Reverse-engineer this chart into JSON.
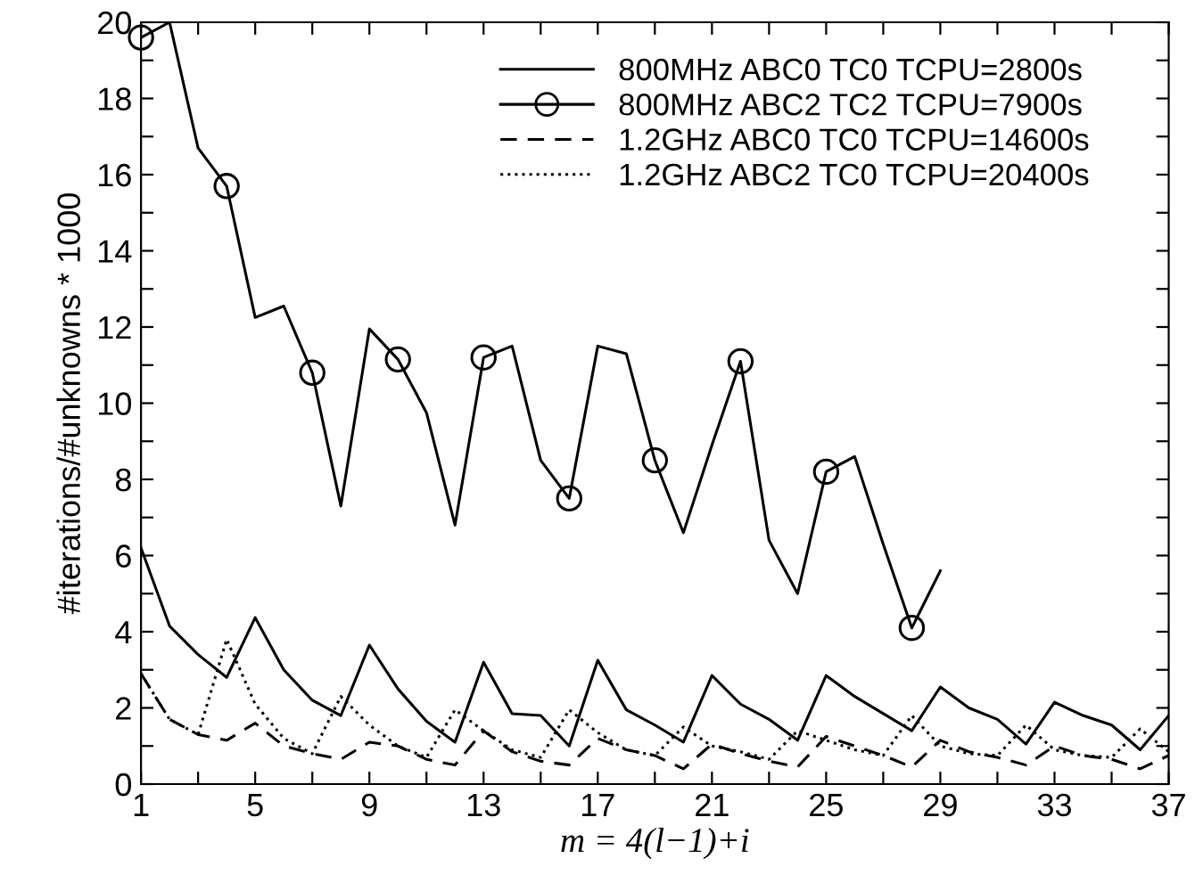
{
  "chart_data": {
    "type": "line",
    "xlabel": "m = 4(l−1)+i",
    "ylabel": "#iterations/#unknowns * 1000",
    "x": [
      1,
      2,
      3,
      4,
      5,
      6,
      7,
      8,
      9,
      10,
      11,
      12,
      13,
      14,
      15,
      16,
      17,
      18,
      19,
      20,
      21,
      22,
      23,
      24,
      25,
      26,
      27,
      28,
      29,
      30,
      31,
      32,
      33,
      34,
      35,
      36,
      37
    ],
    "xlim": [
      1,
      37
    ],
    "ylim": [
      0,
      20
    ],
    "xticks": [
      1,
      {
        "value": 3,
        "label": null
      },
      5,
      {
        "value": 7,
        "label": null
      },
      9,
      {
        "value": 11,
        "label": null
      },
      13,
      {
        "value": 15,
        "label": null
      },
      17,
      {
        "value": 19,
        "label": null
      },
      21,
      {
        "value": 23,
        "label": null
      },
      25,
      {
        "value": 27,
        "label": null
      },
      29,
      {
        "value": 31,
        "label": null
      },
      33,
      {
        "value": 35,
        "label": null
      },
      37
    ],
    "yticks": [
      0,
      {
        "value": 1,
        "label": null
      },
      2,
      {
        "value": 3,
        "label": null
      },
      4,
      {
        "value": 5,
        "label": null
      },
      6,
      {
        "value": 7,
        "label": null
      },
      8,
      {
        "value": 9,
        "label": null
      },
      10,
      {
        "value": 11,
        "label": null
      },
      12,
      {
        "value": 13,
        "label": null
      },
      14,
      {
        "value": 15,
        "label": null
      },
      16,
      {
        "value": 17,
        "label": null
      },
      18,
      {
        "value": 19,
        "label": null
      },
      20
    ],
    "grid": false,
    "legend": "top right",
    "series": [
      {
        "name": "800MHz ABC0 TC0 TCPU=2800s",
        "color": "#000000",
        "line_style": "solid",
        "marker": "none",
        "values": [
          6.2,
          4.15,
          3.4,
          2.8,
          4.37,
          3.0,
          2.2,
          1.8,
          3.65,
          2.5,
          1.65,
          1.1,
          3.2,
          1.85,
          1.8,
          1.0,
          3.25,
          1.95,
          1.55,
          1.1,
          2.85,
          2.1,
          1.7,
          1.15,
          2.85,
          2.3,
          1.85,
          1.4,
          2.55,
          2.0,
          1.7,
          1.05,
          2.15,
          1.8,
          1.55,
          0.9,
          1.8
        ]
      },
      {
        "name": "800MHz ABC2 TC2 TCPU=7900s",
        "color": "#000000",
        "line_style": "solid",
        "marker": "none",
        "values": [
          19.6,
          20,
          16.7,
          15.7,
          12.25,
          12.55,
          10.8,
          7.3,
          11.95,
          11.15,
          9.75,
          6.8,
          11.2,
          11.5,
          8.5,
          7.5,
          11.5,
          11.3,
          8.5,
          6.6,
          8.9,
          11.1,
          6.4,
          5.0,
          8.2,
          8.6,
          6.3,
          4.1,
          5.6,
          null,
          null,
          null,
          null,
          null,
          null,
          null,
          null
        ]
      },
      {
        "type": "scatter",
        "color": "#000000",
        "marker": "circle",
        "x": [
          1,
          4,
          7,
          10,
          13,
          16,
          19,
          22,
          25,
          28
        ],
        "values": [
          19.6,
          15.7,
          10.8,
          11.15,
          11.2,
          7.5,
          8.5,
          11.1,
          8.2,
          4.1
        ]
      },
      {
        "name": "1.2GHz ABC0 TC0 TCPU=14600s",
        "color": "#000000",
        "line_style": "dashed",
        "marker": "none",
        "values": [
          2.9,
          1.7,
          1.3,
          1.15,
          1.6,
          1.0,
          0.8,
          0.65,
          1.1,
          1.0,
          0.65,
          0.5,
          1.4,
          0.85,
          0.6,
          0.5,
          1.2,
          0.9,
          0.75,
          0.4,
          1.05,
          0.8,
          0.6,
          0.45,
          1.25,
          1.0,
          0.75,
          0.45,
          1.15,
          0.85,
          0.7,
          0.5,
          1.0,
          0.75,
          0.65,
          0.4,
          0.75
        ]
      },
      {
        "name": "1.2GHz ABC2 TC0 TCPU=20400s",
        "color": "#000000",
        "line_style": "dotted",
        "marker": "none",
        "values": [
          2.9,
          1.7,
          1.3,
          3.8,
          2.1,
          1.2,
          0.8,
          2.3,
          1.55,
          1.0,
          0.7,
          1.95,
          1.4,
          0.9,
          0.7,
          1.95,
          1.35,
          0.9,
          0.75,
          1.5,
          1.0,
          0.85,
          0.65,
          1.4,
          1.15,
          0.9,
          0.75,
          1.8,
          1.0,
          0.8,
          0.75,
          1.55,
          0.9,
          0.75,
          0.7,
          1.45,
          0.85
        ]
      }
    ]
  }
}
